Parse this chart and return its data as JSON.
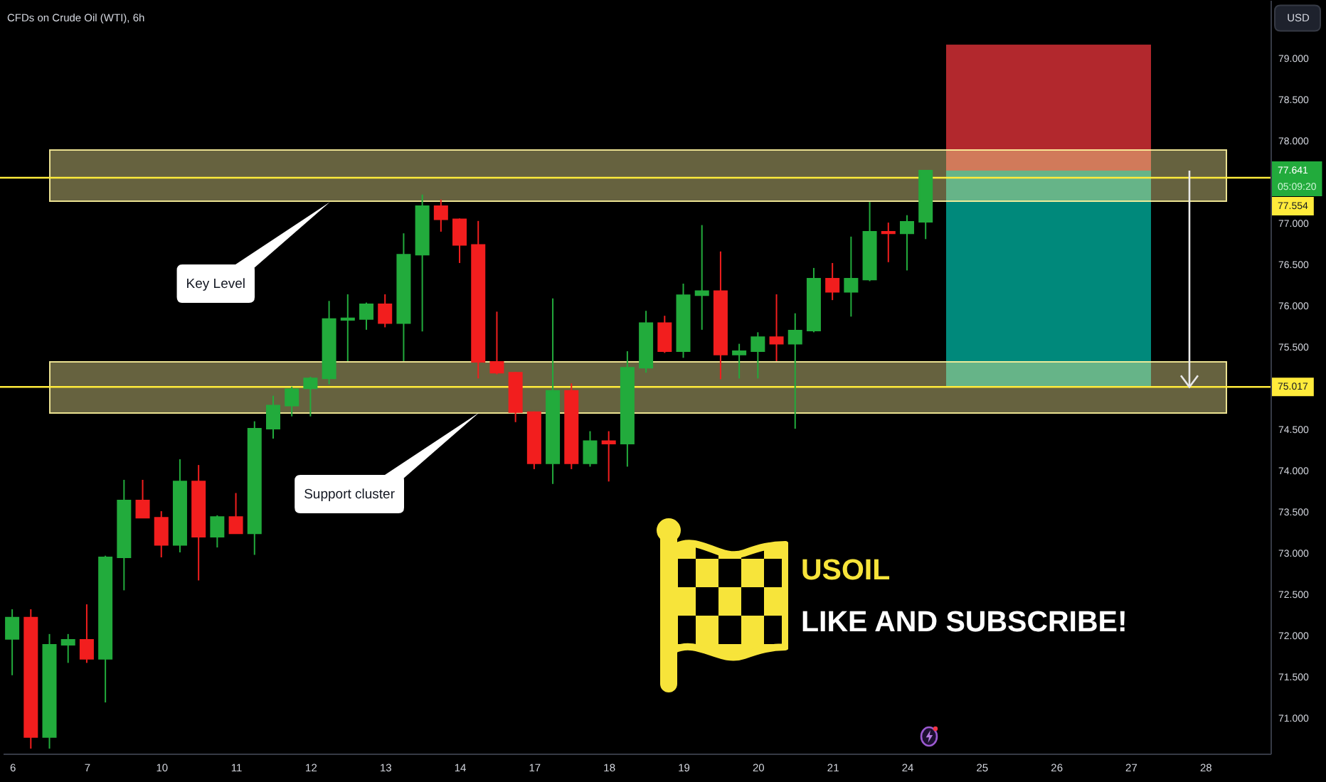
{
  "chart_data": {
    "type": "candlestick",
    "title": "CFDs on Crude Oil (WTI), 6h",
    "ylabel": "USD",
    "categories": [
      "6",
      null,
      null,
      null,
      "7",
      null,
      null,
      null,
      "10",
      null,
      null,
      null,
      "11",
      null,
      null,
      null,
      "12",
      null,
      null,
      null,
      "13",
      null,
      null,
      null,
      "14",
      null,
      null,
      null,
      "17",
      null,
      null,
      null,
      "18",
      null,
      null,
      null,
      "19",
      null,
      null,
      null,
      "20",
      null,
      null,
      null,
      "21",
      null,
      null,
      null,
      "24",
      null,
      null,
      null,
      "25",
      null,
      null,
      null,
      "26",
      null,
      null,
      null,
      "27",
      null,
      null,
      null,
      "28",
      null,
      null,
      null
    ],
    "ohlc": [
      [
        71.96,
        72.32,
        71.52,
        72.22
      ],
      [
        72.22,
        72.32,
        70.63,
        70.77
      ],
      [
        70.77,
        72.02,
        70.63,
        71.89
      ],
      [
        71.89,
        72.02,
        71.67,
        71.95
      ],
      [
        71.95,
        72.38,
        71.67,
        71.72
      ],
      [
        71.72,
        72.97,
        71.19,
        72.95
      ],
      [
        72.95,
        73.89,
        72.55,
        73.64
      ],
      [
        73.64,
        73.89,
        73.43,
        73.43
      ],
      [
        73.43,
        73.51,
        72.95,
        73.1
      ],
      [
        73.1,
        74.14,
        73.01,
        73.87
      ],
      [
        73.87,
        74.07,
        72.67,
        73.2
      ],
      [
        73.2,
        73.46,
        73.07,
        73.44
      ],
      [
        73.44,
        73.73,
        73.24,
        73.24
      ],
      [
        73.24,
        74.6,
        72.98,
        74.51
      ],
      [
        74.51,
        74.91,
        74.39,
        74.79
      ],
      [
        74.79,
        75.02,
        74.66,
        74.99
      ],
      [
        75.0,
        75.14,
        74.66,
        75.12
      ],
      [
        75.12,
        76.06,
        75.05,
        75.84
      ],
      [
        75.83,
        76.14,
        75.33,
        75.85
      ],
      [
        75.84,
        76.04,
        75.71,
        76.02
      ],
      [
        76.02,
        76.14,
        75.74,
        75.79
      ],
      [
        75.79,
        76.88,
        75.33,
        76.62
      ],
      [
        76.62,
        77.35,
        75.69,
        77.21
      ],
      [
        77.21,
        77.29,
        76.9,
        77.05
      ],
      [
        77.05,
        77.06,
        76.52,
        76.74
      ],
      [
        76.74,
        77.03,
        75.12,
        75.32
      ],
      [
        75.32,
        75.93,
        75.17,
        75.19
      ],
      [
        75.19,
        75.2,
        74.59,
        74.71
      ],
      [
        74.71,
        74.72,
        74.02,
        74.09
      ],
      [
        74.09,
        76.09,
        73.84,
        74.97
      ],
      [
        74.97,
        75.06,
        74.02,
        74.09
      ],
      [
        74.09,
        74.48,
        74.05,
        74.36
      ],
      [
        74.36,
        74.48,
        73.87,
        74.33
      ],
      [
        74.33,
        75.45,
        74.05,
        75.25
      ],
      [
        75.25,
        75.94,
        75.19,
        75.79
      ],
      [
        75.79,
        75.88,
        75.43,
        75.45
      ],
      [
        75.45,
        76.27,
        75.37,
        76.13
      ],
      [
        76.13,
        76.98,
        75.71,
        76.18
      ],
      [
        76.18,
        76.66,
        75.11,
        75.41
      ],
      [
        75.41,
        75.54,
        75.12,
        75.45
      ],
      [
        75.45,
        75.68,
        75.12,
        75.62
      ],
      [
        75.62,
        76.14,
        75.33,
        75.54
      ],
      [
        75.54,
        75.91,
        74.51,
        75.7
      ],
      [
        75.7,
        76.46,
        75.68,
        76.33
      ],
      [
        76.33,
        76.52,
        76.07,
        76.17
      ],
      [
        76.17,
        76.84,
        75.87,
        76.33
      ],
      [
        76.32,
        77.26,
        76.3,
        76.9
      ],
      [
        76.9,
        77.01,
        76.53,
        76.88
      ],
      [
        76.88,
        77.1,
        76.43,
        77.02
      ],
      [
        77.02,
        77.641,
        76.81,
        77.641
      ],
      null,
      null,
      null,
      null,
      null,
      null,
      null,
      null,
      null,
      null,
      null,
      null,
      null,
      null,
      null,
      null,
      null,
      null
    ],
    "colors": [
      "#22ab3c",
      "#f21e1e",
      "#22ab3c",
      "#22ab3c",
      "#f21e1e",
      "#22ab3c",
      "#22ab3c",
      "#f21e1e",
      "#f21e1e",
      "#22ab3c",
      "#f21e1e",
      "#22ab3c",
      "#f21e1e",
      "#22ab3c",
      "#22ab3c",
      "#22ab3c",
      "#22ab3c",
      "#22ab3c",
      "#22ab3c",
      "#22ab3c",
      "#f21e1e",
      "#22ab3c",
      "#22ab3c",
      "#f21e1e",
      "#f21e1e",
      "#f21e1e",
      "#f21e1e",
      "#f21e1e",
      "#f21e1e",
      "#22ab3c",
      "#f21e1e",
      "#22ab3c",
      "#f21e1e",
      "#22ab3c",
      "#22ab3c",
      "#f21e1e",
      "#22ab3c",
      "#22ab3c",
      "#f21e1e",
      "#22ab3c",
      "#22ab3c",
      "#f21e1e",
      "#22ab3c",
      "#22ab3c",
      "#f21e1e",
      "#22ab3c",
      "#22ab3c",
      "#f21e1e",
      "#22ab3c",
      "#22ab3c",
      null,
      null,
      null,
      null,
      null,
      null,
      null,
      null,
      null,
      null,
      null,
      null,
      null,
      null,
      null,
      null,
      null,
      null
    ],
    "ylim": [
      70.57,
      79.71
    ],
    "yticks": [
      {
        "value": 71,
        "label": "71.000"
      },
      {
        "value": 71.5,
        "label": "71.500"
      },
      {
        "value": 72,
        "label": "72.000"
      },
      {
        "value": 72.5,
        "label": "72.500"
      },
      {
        "value": 73,
        "label": "73.000"
      },
      {
        "value": 73.5,
        "label": "73.500"
      },
      {
        "value": 74,
        "label": "74.000"
      },
      {
        "value": 74.5,
        "label": "74.500"
      },
      {
        "value": 75.5,
        "label": "75.500"
      },
      {
        "value": 76,
        "label": "76.000"
      },
      {
        "value": 76.5,
        "label": "76.500"
      },
      {
        "value": 77,
        "label": "77.000"
      },
      {
        "value": 78,
        "label": "78.000"
      },
      {
        "value": 78.5,
        "label": "78.500"
      },
      {
        "value": 79,
        "label": "79.000"
      }
    ],
    "bands": [
      {
        "axis": "y",
        "from": 77.641,
        "to": 79.17,
        "color": "#b2282d"
      },
      {
        "axis": "y",
        "from": 75.017,
        "to": 77.641,
        "color": "#00897b"
      },
      {
        "axis": "y",
        "from": 77.27,
        "to": 77.89,
        "color": "#fff59d"
      },
      {
        "axis": "y",
        "from": 74.7,
        "to": 75.32,
        "color": "#fff59d"
      }
    ],
    "ref_lines": [
      {
        "axis": "y",
        "value": 77.554,
        "label": "77.554",
        "color": "#ffeb3b"
      },
      {
        "axis": "y",
        "value": 75.017,
        "label": "75.017",
        "color": "#ffeb3b"
      }
    ],
    "annotations": [
      "Key Level",
      "Support cluster",
      "77.641",
      "05:09:20",
      "USOIL",
      "LIKE AND SUBSCRIBE!"
    ]
  }
}
